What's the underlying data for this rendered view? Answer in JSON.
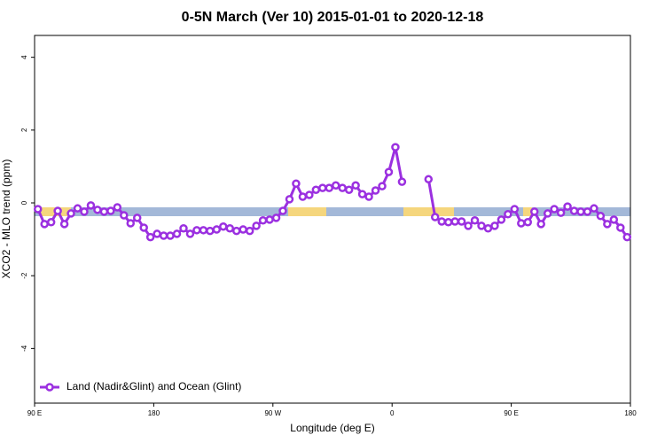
{
  "chart_data": {
    "type": "line",
    "title": "0-5N March (Ver 10)   2015-01-01 to 2020-12-18",
    "x_label": "Longitude (deg E)",
    "y_label": "XCO2 - MLO trend (ppm)",
    "x": [
      92.5,
      97.5,
      102.5,
      107.5,
      112.5,
      117.5,
      122.5,
      127.5,
      132.5,
      137.5,
      142.5,
      147.5,
      152.5,
      157.5,
      162.5,
      167.5,
      172.5,
      177.5,
      182.5,
      187.5,
      192.5,
      197.5,
      202.5,
      207.5,
      212.5,
      217.5,
      222.5,
      227.5,
      232.5,
      237.5,
      242.5,
      247.5,
      252.5,
      257.5,
      262.5,
      267.5,
      272.5,
      277.5,
      282.5,
      287.5,
      292.5,
      297.5,
      302.5,
      307.5,
      312.5,
      317.5,
      322.5,
      327.5,
      332.5,
      337.5,
      342.5,
      347.5,
      352.5,
      357.5,
      362.5,
      367.5,
      372.5,
      377.5,
      382.5,
      387.5,
      392.5,
      397.5,
      402.5,
      407.5,
      412.5,
      417.5,
      422.5,
      427.5,
      432.5,
      437.5,
      442.5,
      447.5,
      452.5,
      457.5,
      462.5,
      467.5,
      472.5,
      477.5,
      482.5,
      487.5,
      492.5,
      497.5,
      502.5,
      507.5,
      512.5,
      517.5,
      522.5,
      527.5,
      532.5,
      537.5
    ],
    "series": [
      {
        "name": "Land (Nadir&Glint) and Ocean (Glint)",
        "color": "#9b30e0",
        "values": [
          -0.17,
          -0.58,
          -0.53,
          -0.22,
          -0.58,
          -0.29,
          -0.15,
          -0.24,
          -0.07,
          -0.19,
          -0.24,
          -0.22,
          -0.12,
          -0.34,
          -0.56,
          -0.41,
          -0.68,
          -0.94,
          -0.85,
          -0.9,
          -0.9,
          -0.85,
          -0.7,
          -0.85,
          -0.75,
          -0.75,
          -0.77,
          -0.73,
          -0.65,
          -0.7,
          -0.77,
          -0.73,
          -0.77,
          -0.63,
          -0.48,
          -0.46,
          -0.41,
          -0.22,
          0.1,
          0.53,
          0.17,
          0.22,
          0.36,
          0.41,
          0.41,
          0.48,
          0.41,
          0.36,
          0.48,
          0.24,
          0.17,
          0.34,
          0.46,
          0.85,
          1.53,
          0.58,
          null,
          null,
          null,
          0.65,
          -0.39,
          -0.51,
          -0.53,
          -0.51,
          -0.51,
          -0.63,
          -0.48,
          -0.63,
          -0.7,
          -0.63,
          -0.46,
          -0.31,
          -0.17,
          -0.56,
          -0.53,
          -0.24,
          -0.58,
          -0.29,
          -0.17,
          -0.27,
          -0.1,
          -0.22,
          -0.24,
          -0.24,
          -0.15,
          -0.36,
          -0.58,
          -0.46,
          -0.68,
          -0.94
        ]
      }
    ],
    "xlim": [
      90,
      540
    ],
    "xticks": [
      {
        "value": 90,
        "label": "90 E"
      },
      180,
      {
        "value": 270,
        "label": "90 W"
      },
      {
        "value": 360,
        "label": "0"
      },
      {
        "value": 450,
        "label": "90 E"
      },
      {
        "value": 540,
        "label": "180"
      }
    ],
    "ylim": [
      -5.5,
      4.6
    ],
    "yticks": [
      -4,
      -2,
      0,
      2,
      4
    ],
    "legend": "bottom-left"
  }
}
